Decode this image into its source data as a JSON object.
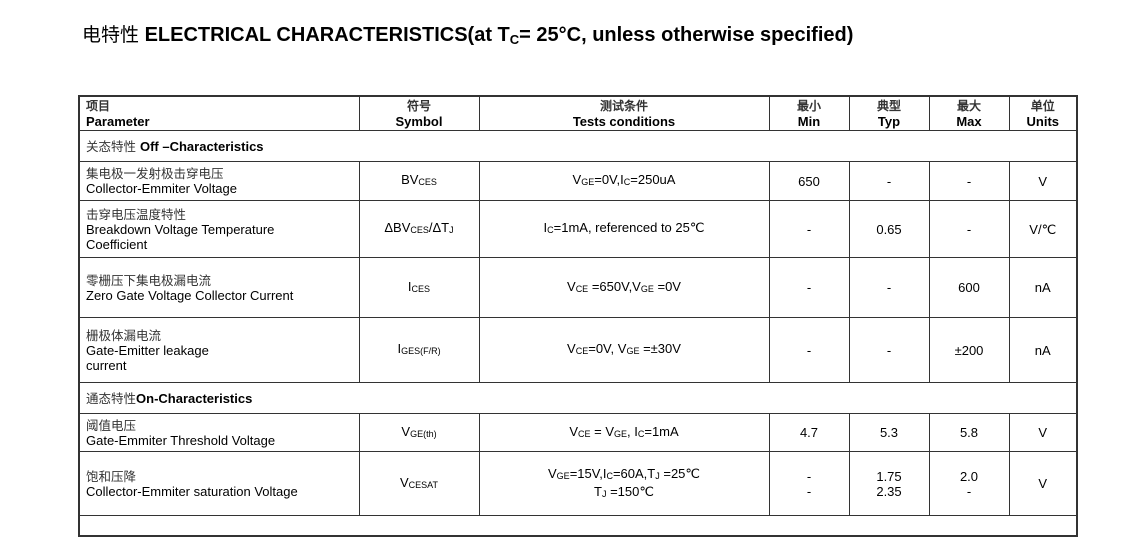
{
  "title": {
    "cn": "电特性",
    "en_a": "ELECTRICAL CHARACTERISTICS(at T",
    "en_sub": "C",
    "en_b": "= 25°C, unless otherwise specified)"
  },
  "header": {
    "parameter": {
      "cn": "项目",
      "en": "Parameter"
    },
    "symbol": {
      "cn": "符号",
      "en": "Symbol"
    },
    "conditions": {
      "cn": "测试条件",
      "en": "Tests conditions"
    },
    "min": {
      "cn": "最小",
      "en": "Min"
    },
    "typ": {
      "cn": "典型",
      "en": "Typ"
    },
    "max": {
      "cn": "最大",
      "en": "Max"
    },
    "units": {
      "cn": "单位",
      "en": "Units"
    }
  },
  "rows": [
    {
      "type": "section",
      "cn": "关态特性 ",
      "en": "Off –Characteristics"
    },
    {
      "type": "data",
      "cn": "集电极一发射极击穿电压",
      "en": "Collector-Emmiter Voltage",
      "symbol": [
        [
          "BV",
          ""
        ],
        [
          "",
          "CES"
        ]
      ],
      "conditions": [
        [
          [
            "V",
            ""
          ],
          [
            "",
            "GE"
          ],
          [
            "=0V,I",
            ""
          ],
          [
            "",
            "C"
          ],
          [
            "=250uA",
            ""
          ]
        ]
      ],
      "min": "650",
      "typ": "-",
      "max": "-",
      "units": "V",
      "h": 39
    },
    {
      "type": "data",
      "cn": "击穿电压温度特性",
      "en": "Breakdown Voltage Temperature\nCoefficient",
      "symbol": [
        [
          "ΔBV",
          ""
        ],
        [
          "",
          "CES"
        ],
        [
          "/ΔT",
          ""
        ],
        [
          "",
          "J"
        ]
      ],
      "conditions": [
        [
          [
            "I",
            ""
          ],
          [
            "",
            "C"
          ],
          [
            "=1mA, referenced to 25℃",
            ""
          ]
        ]
      ],
      "min": "-",
      "typ": "0.65",
      "max": "-",
      "units": "V/℃",
      "h": 57
    },
    {
      "type": "data",
      "cn": "零栅压下集电极漏电流",
      "en": "Zero Gate Voltage Collector Current",
      "symbol": [
        [
          "I",
          ""
        ],
        [
          "",
          "CES"
        ]
      ],
      "conditions": [
        [
          [
            "V",
            ""
          ],
          [
            "",
            "CE"
          ],
          [
            " =650V,V",
            ""
          ],
          [
            "",
            "GE"
          ],
          [
            " =0V",
            ""
          ]
        ]
      ],
      "min": "-",
      "typ": "-",
      "max": "600",
      "units": "nA",
      "h": 60
    },
    {
      "type": "data",
      "cn": "栅极体漏电流",
      "en": "Gate-Emitter leakage\ncurrent",
      "symbol": [
        [
          "I",
          ""
        ],
        [
          "",
          "GES(F/R)"
        ]
      ],
      "conditions": [
        [
          [
            "V",
            ""
          ],
          [
            "",
            "CE"
          ],
          [
            "=0V, V",
            ""
          ],
          [
            "",
            "GE"
          ],
          [
            " =±30V",
            ""
          ]
        ]
      ],
      "min": "-",
      "typ": "-",
      "max": "±200",
      "units": "nA",
      "h": 65
    },
    {
      "type": "section",
      "cn": "通态特性",
      "en": "On-Characteristics"
    },
    {
      "type": "data",
      "cn": "阈值电压",
      "en": "Gate-Emmiter Threshold Voltage",
      "symbol": [
        [
          "V",
          ""
        ],
        [
          "",
          "GE(th)"
        ]
      ],
      "conditions": [
        [
          [
            "V",
            ""
          ],
          [
            "",
            "CE"
          ],
          [
            " = V",
            ""
          ],
          [
            "",
            "GE"
          ],
          [
            ", I",
            ""
          ],
          [
            "",
            "C"
          ],
          [
            "=1mA",
            ""
          ]
        ]
      ],
      "min": "4.7",
      "typ": "5.3",
      "max": "5.8",
      "units": "V",
      "h": 38
    },
    {
      "type": "data",
      "cn": "饱和压降",
      "en": "Collector-Emmiter saturation Voltage",
      "symbol": [
        [
          "V",
          ""
        ],
        [
          "",
          "CESAT"
        ]
      ],
      "conditions": [
        [
          [
            "V",
            ""
          ],
          [
            "",
            "GE"
          ],
          [
            "=15V,I",
            ""
          ],
          [
            "",
            "C"
          ],
          [
            "=60A,T",
            ""
          ],
          [
            "",
            "J"
          ],
          [
            " =25℃",
            ""
          ]
        ],
        [
          [
            "T",
            ""
          ],
          [
            "",
            "J"
          ],
          [
            " =150℃",
            ""
          ]
        ]
      ],
      "min": "-\n-",
      "typ": "1.75\n2.35",
      "max": "2.0\n-",
      "units": "V",
      "h": 64
    }
  ]
}
